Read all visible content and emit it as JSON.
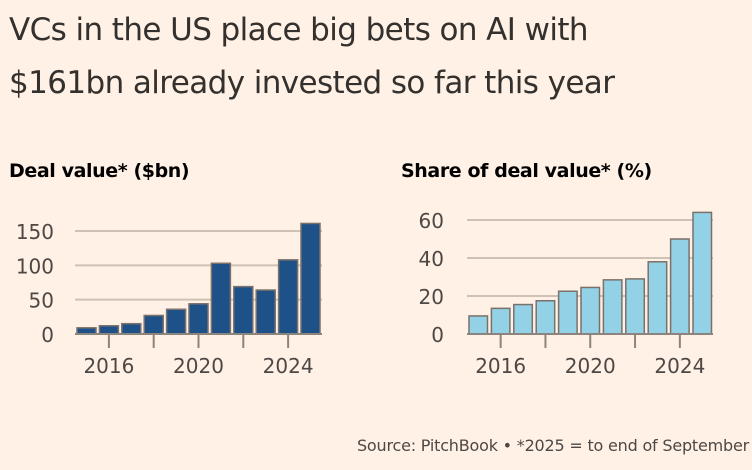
{
  "header": {
    "title_line1": "VCs in the US place big bets on AI with",
    "title_line2": "$161bn already invested so far this year"
  },
  "footer": {
    "source": "Source: PitchBook • *2025 = to end of September"
  },
  "colors": {
    "background": "#fff1e5",
    "bar_left": "#1f5189",
    "bar_right": "#92d1e6",
    "bar_stroke": "#7a716b",
    "gridline": "#cec2b4",
    "axis": "#8c847d"
  },
  "chart_data": [
    {
      "type": "bar",
      "title": "Deal value* ($bn)",
      "xlabel": "",
      "ylabel": "",
      "categories": [
        "2015",
        "2016",
        "2017",
        "2018",
        "2019",
        "2020",
        "2021",
        "2022",
        "2023",
        "2024",
        "2025"
      ],
      "values": [
        9,
        12,
        15,
        27,
        36,
        44,
        103,
        69,
        64,
        108,
        161
      ],
      "ylim": [
        0,
        161
      ],
      "yticks": [
        0,
        50,
        100,
        150
      ],
      "ytick_labels": [
        "0",
        "50",
        "100",
        "150"
      ],
      "xticks": [
        "2016",
        "2018",
        "2020",
        "2022",
        "2024"
      ],
      "xtick_labels": [
        "2016",
        "",
        "2020",
        "",
        "2024"
      ],
      "grid": true,
      "legend": "none"
    },
    {
      "type": "bar",
      "title": "Share of deal value* (%)",
      "xlabel": "",
      "ylabel": "",
      "categories": [
        "2015",
        "2016",
        "2017",
        "2018",
        "2019",
        "2020",
        "2021",
        "2022",
        "2023",
        "2024",
        "2025"
      ],
      "values": [
        9.5,
        13.5,
        15.5,
        17.5,
        22.5,
        24.5,
        28.5,
        29,
        38,
        50,
        64
      ],
      "ylim": [
        0,
        64
      ],
      "yticks": [
        0,
        20,
        40,
        60
      ],
      "ytick_labels": [
        "0",
        "20",
        "40",
        "60"
      ],
      "xticks": [
        "2016",
        "2018",
        "2020",
        "2022",
        "2024"
      ],
      "xtick_labels": [
        "2016",
        "",
        "2020",
        "",
        "2024"
      ],
      "grid": true,
      "legend": "none"
    }
  ]
}
